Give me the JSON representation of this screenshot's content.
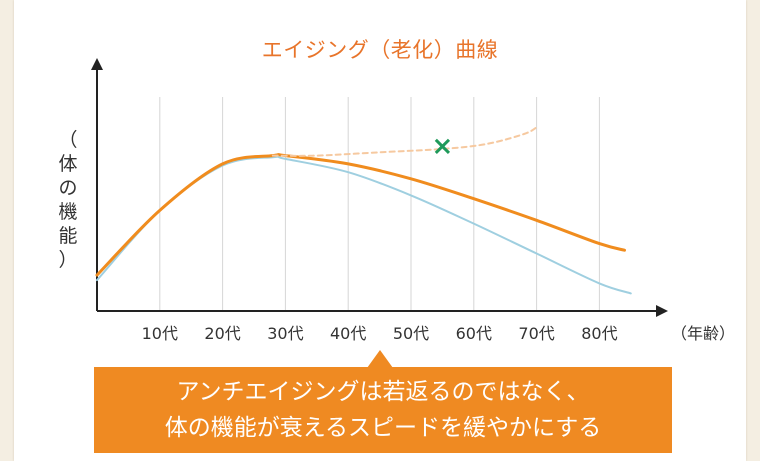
{
  "chart_data": {
    "type": "line",
    "title": "エイジング（老化）曲線",
    "ylabel_chars": [
      "（",
      "体",
      "の",
      "機",
      "能",
      "）"
    ],
    "xlabel": "（年齢）",
    "categories": [
      "10代",
      "20代",
      "30代",
      "40代",
      "50代",
      "60代",
      "70代",
      "80代"
    ],
    "grid": true,
    "series": [
      {
        "key": "light-blue",
        "color": "#9fcfe0",
        "points": [
          [
            0,
            0.12
          ],
          [
            10,
            0.54
          ],
          [
            20,
            0.81
          ],
          [
            28,
            0.86
          ],
          [
            30,
            0.85
          ],
          [
            40,
            0.77
          ],
          [
            50,
            0.63
          ],
          [
            60,
            0.46
          ],
          [
            70,
            0.28
          ],
          [
            80,
            0.1
          ],
          [
            85,
            0.04
          ]
        ]
      },
      {
        "key": "orange",
        "color": "#f08c1e",
        "points": [
          [
            0,
            0.15
          ],
          [
            10,
            0.54
          ],
          [
            20,
            0.82
          ],
          [
            28,
            0.87
          ],
          [
            30,
            0.87
          ],
          [
            40,
            0.82
          ],
          [
            50,
            0.73
          ],
          [
            60,
            0.61
          ],
          [
            70,
            0.48
          ],
          [
            80,
            0.34
          ],
          [
            84,
            0.3
          ]
        ]
      },
      {
        "key": "dashed",
        "color": "#f6c9a0",
        "dashed": true,
        "points": [
          [
            28,
            0.87
          ],
          [
            35,
            0.87
          ],
          [
            45,
            0.89
          ],
          [
            55,
            0.91
          ],
          [
            62,
            0.94
          ],
          [
            68,
            1.0
          ],
          [
            70,
            1.04
          ]
        ]
      }
    ],
    "marker": {
      "symbol": "×",
      "color": "#1f9a5a",
      "x": 55,
      "y": 0.93
    }
  },
  "callout": {
    "line1": "アンチエイジングは若返るのではなく、",
    "line2": "体の機能が衰えるスピードを緩やかにする"
  }
}
